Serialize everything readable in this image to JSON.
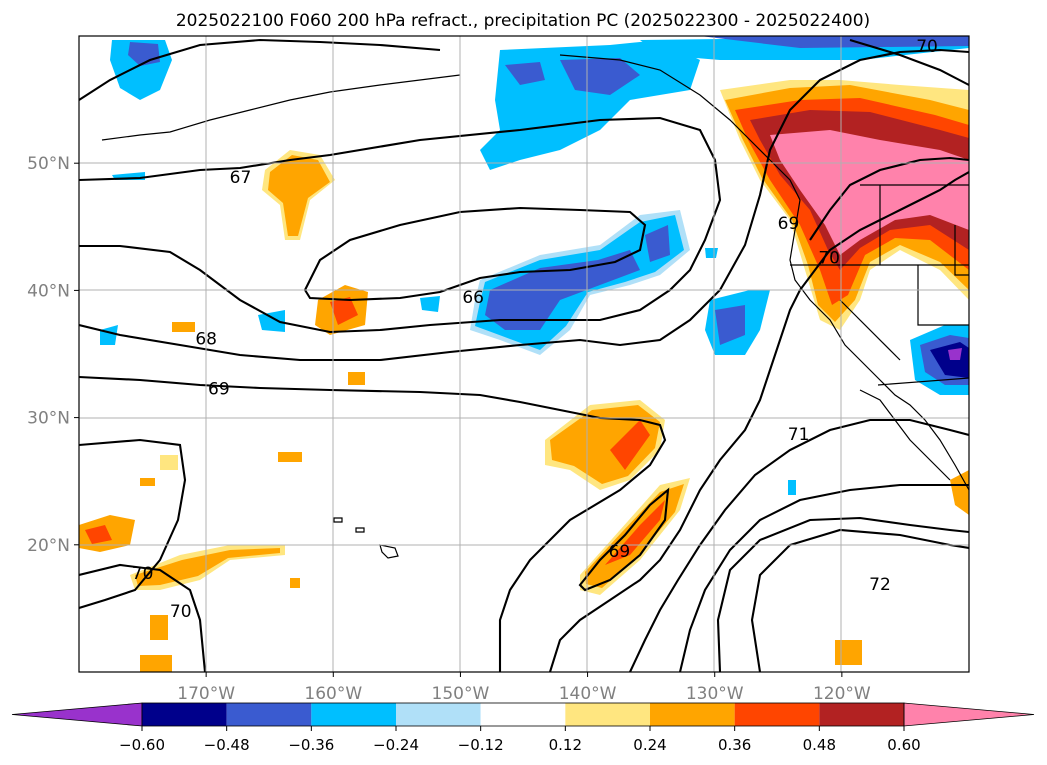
{
  "title": "2025022100 F060 200 hPa refract., precipitation PC (2025022300 - 2025022400)",
  "chart_data": {
    "type": "contour-map",
    "title": "2025022100 F060 200 hPa refract., precipitation PC (2025022300 - 2025022400)",
    "xlim": [
      -180,
      -110
    ],
    "ylim": [
      10,
      60
    ],
    "x_ticks": [
      {
        "value": -170,
        "label": "170°W"
      },
      {
        "value": -160,
        "label": "160°W"
      },
      {
        "value": -150,
        "label": "150°W"
      },
      {
        "value": -140,
        "label": "140°W"
      },
      {
        "value": -130,
        "label": "130°W"
      },
      {
        "value": -120,
        "label": "120°W"
      }
    ],
    "y_ticks": [
      {
        "value": 20,
        "label": "20°N"
      },
      {
        "value": 30,
        "label": "30°N"
      },
      {
        "value": 40,
        "label": "40°N"
      },
      {
        "value": 50,
        "label": "50°N"
      }
    ],
    "grid": true,
    "colorbar": {
      "position": "bottom",
      "extend": "both",
      "tick_labels": [
        "−0.60",
        "−0.48",
        "−0.36",
        "−0.24",
        "−0.12",
        "0.12",
        "0.24",
        "0.36",
        "0.48",
        "0.60"
      ],
      "colors": [
        "#9932cc",
        "#00008b",
        "#3a5bd0",
        "#00bfff",
        "#b0e0f8",
        "#ffffff",
        "#ffe680",
        "#ffa500",
        "#ff4500",
        "#b22222",
        "#ff82ab"
      ]
    },
    "contour_labels": [
      {
        "value": "66",
        "lon": -149,
        "lat": 39.5
      },
      {
        "value": "67",
        "lon": -167.3,
        "lat": 48.9
      },
      {
        "value": "68",
        "lon": -170,
        "lat": 36.2
      },
      {
        "value": "69",
        "lon": -169,
        "lat": 32.3
      },
      {
        "value": "69",
        "lon": -137.5,
        "lat": 19.5
      },
      {
        "value": "69",
        "lon": -124.2,
        "lat": 45.3
      },
      {
        "value": "70",
        "lon": -113.3,
        "lat": 59.2
      },
      {
        "value": "70",
        "lon": -121,
        "lat": 42.6
      },
      {
        "value": "70",
        "lon": -175,
        "lat": 17.8
      },
      {
        "value": "70",
        "lon": -172,
        "lat": 14.8
      },
      {
        "value": "71",
        "lon": -123.4,
        "lat": 28.7
      },
      {
        "value": "72",
        "lon": -117,
        "lat": 16.9
      }
    ]
  }
}
